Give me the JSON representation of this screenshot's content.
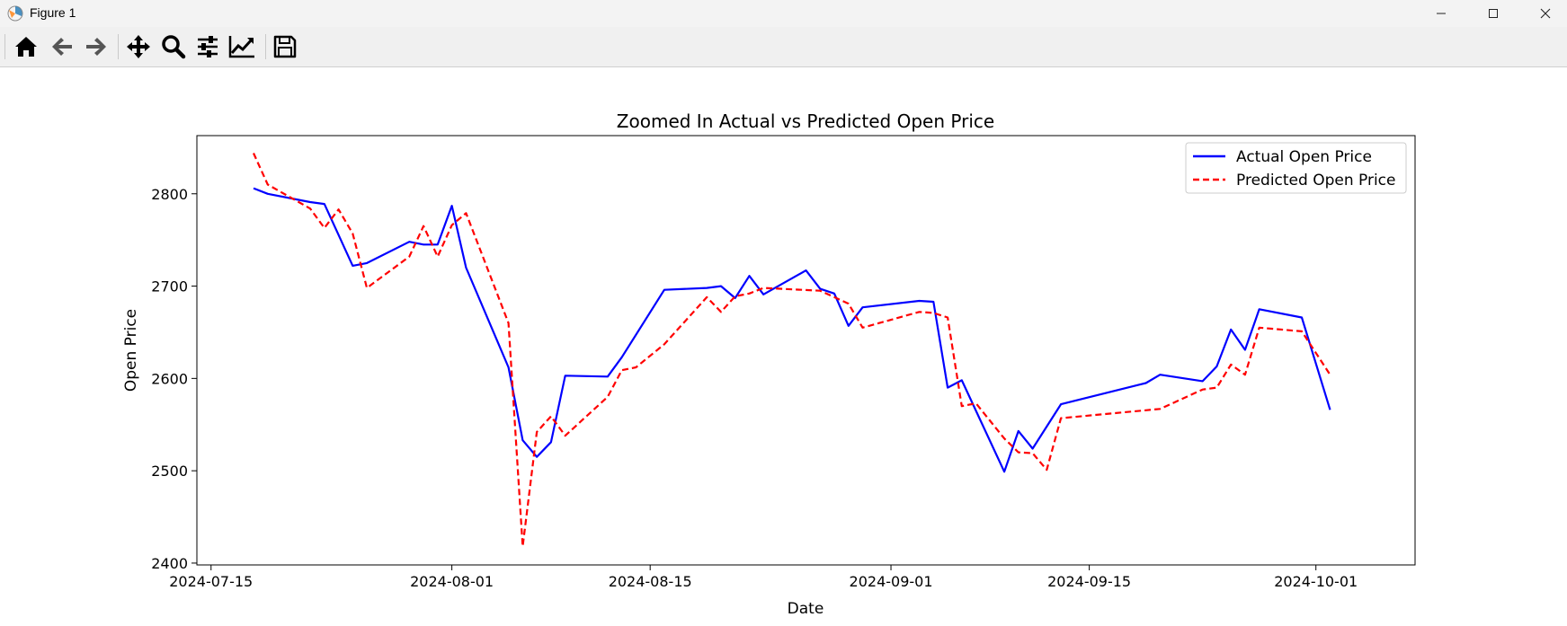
{
  "window": {
    "title": "Figure 1",
    "icons": [
      "app-icon",
      "minimize-icon",
      "maximize-icon",
      "close-icon"
    ]
  },
  "toolbar": {
    "buttons": [
      "home-icon",
      "back-icon",
      "forward-icon",
      "pan-icon",
      "zoom-icon",
      "configure-subplots-icon",
      "edit-axis-icon",
      "save-icon"
    ]
  },
  "chart_data": {
    "type": "line",
    "title": "Zoomed In Actual vs Predicted Open Price",
    "xlabel": "Date",
    "ylabel": "Open Price",
    "x_type": "date",
    "xlim": [
      "2024-07-14",
      "2024-10-08"
    ],
    "ylim": [
      2398,
      2863
    ],
    "x_ticks": [
      "2024-07-15",
      "2024-08-01",
      "2024-08-15",
      "2024-09-01",
      "2024-09-15",
      "2024-10-01"
    ],
    "y_ticks": [
      2400,
      2500,
      2600,
      2700,
      2800
    ],
    "grid": false,
    "legend_position": "upper right",
    "series": [
      {
        "name": "Actual Open Price",
        "color": "#0000ff",
        "linestyle": "solid",
        "points": [
          [
            "2024-07-18",
            2806
          ],
          [
            "2024-07-19",
            2800
          ],
          [
            "2024-07-22",
            2791
          ],
          [
            "2024-07-23",
            2789
          ],
          [
            "2024-07-25",
            2722
          ],
          [
            "2024-07-26",
            2725
          ],
          [
            "2024-07-29",
            2748
          ],
          [
            "2024-07-30",
            2745
          ],
          [
            "2024-07-31",
            2745
          ],
          [
            "2024-08-01",
            2787
          ],
          [
            "2024-08-02",
            2720
          ],
          [
            "2024-08-05",
            2612
          ],
          [
            "2024-08-06",
            2533
          ],
          [
            "2024-08-07",
            2515
          ],
          [
            "2024-08-08",
            2531
          ],
          [
            "2024-08-09",
            2603
          ],
          [
            "2024-08-12",
            2602
          ],
          [
            "2024-08-13",
            2623
          ],
          [
            "2024-08-16",
            2696
          ],
          [
            "2024-08-19",
            2698
          ],
          [
            "2024-08-20",
            2700
          ],
          [
            "2024-08-21",
            2687
          ],
          [
            "2024-08-22",
            2711
          ],
          [
            "2024-08-23",
            2691
          ],
          [
            "2024-08-26",
            2717
          ],
          [
            "2024-08-27",
            2697
          ],
          [
            "2024-08-28",
            2692
          ],
          [
            "2024-08-29",
            2657
          ],
          [
            "2024-08-30",
            2677
          ],
          [
            "2024-09-03",
            2684
          ],
          [
            "2024-09-04",
            2683
          ],
          [
            "2024-09-05",
            2590
          ],
          [
            "2024-09-06",
            2598
          ],
          [
            "2024-09-09",
            2499
          ],
          [
            "2024-09-10",
            2543
          ],
          [
            "2024-09-11",
            2524
          ],
          [
            "2024-09-13",
            2572
          ],
          [
            "2024-09-19",
            2595
          ],
          [
            "2024-09-20",
            2604
          ],
          [
            "2024-09-23",
            2597
          ],
          [
            "2024-09-24",
            2613
          ],
          [
            "2024-09-25",
            2653
          ],
          [
            "2024-09-26",
            2631
          ],
          [
            "2024-09-27",
            2675
          ],
          [
            "2024-09-30",
            2666
          ],
          [
            "2024-10-02",
            2566
          ]
        ]
      },
      {
        "name": "Predicted Open Price",
        "color": "#ff0000",
        "linestyle": "dashed",
        "points": [
          [
            "2024-07-18",
            2844
          ],
          [
            "2024-07-19",
            2810
          ],
          [
            "2024-07-22",
            2784
          ],
          [
            "2024-07-23",
            2763
          ],
          [
            "2024-07-24",
            2783
          ],
          [
            "2024-07-25",
            2757
          ],
          [
            "2024-07-26",
            2698
          ],
          [
            "2024-07-29",
            2732
          ],
          [
            "2024-07-30",
            2765
          ],
          [
            "2024-07-31",
            2732
          ],
          [
            "2024-08-01",
            2766
          ],
          [
            "2024-08-02",
            2779
          ],
          [
            "2024-08-05",
            2660
          ],
          [
            "2024-08-06",
            2418
          ],
          [
            "2024-08-07",
            2542
          ],
          [
            "2024-08-08",
            2559
          ],
          [
            "2024-08-09",
            2538
          ],
          [
            "2024-08-12",
            2580
          ],
          [
            "2024-08-13",
            2609
          ],
          [
            "2024-08-14",
            2612
          ],
          [
            "2024-08-16",
            2637
          ],
          [
            "2024-08-19",
            2688
          ],
          [
            "2024-08-20",
            2672
          ],
          [
            "2024-08-21",
            2689
          ],
          [
            "2024-08-22",
            2692
          ],
          [
            "2024-08-23",
            2698
          ],
          [
            "2024-08-27",
            2695
          ],
          [
            "2024-08-29",
            2681
          ],
          [
            "2024-08-30",
            2655
          ],
          [
            "2024-09-03",
            2672
          ],
          [
            "2024-09-04",
            2671
          ],
          [
            "2024-09-05",
            2666
          ],
          [
            "2024-09-06",
            2570
          ],
          [
            "2024-09-07",
            2573
          ],
          [
            "2024-09-09",
            2535
          ],
          [
            "2024-09-10",
            2520
          ],
          [
            "2024-09-11",
            2519
          ],
          [
            "2024-09-12",
            2501
          ],
          [
            "2024-09-13",
            2557
          ],
          [
            "2024-09-20",
            2567
          ],
          [
            "2024-09-23",
            2588
          ],
          [
            "2024-09-24",
            2590
          ],
          [
            "2024-09-25",
            2615
          ],
          [
            "2024-09-26",
            2604
          ],
          [
            "2024-09-27",
            2655
          ],
          [
            "2024-09-30",
            2651
          ],
          [
            "2024-10-02",
            2604
          ]
        ]
      }
    ]
  }
}
